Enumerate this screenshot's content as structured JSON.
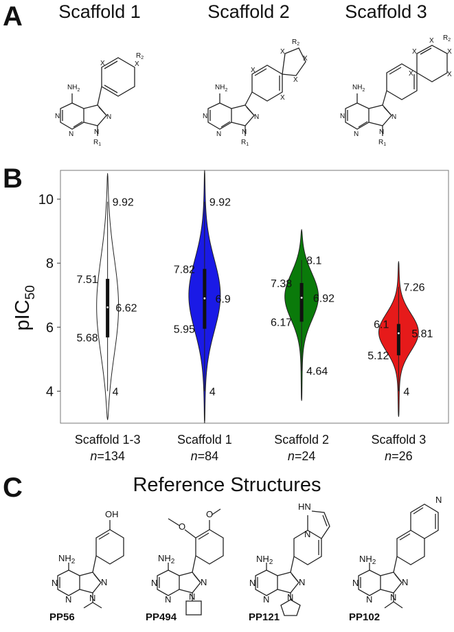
{
  "panels": {
    "a": "A",
    "b": "B",
    "c": "C"
  },
  "scaffold_titles": [
    "Scaffold 1",
    "Scaffold 2",
    "Scaffold 3"
  ],
  "chemistry": {
    "nh2": "NH",
    "sub2": "2",
    "n": "N",
    "x": "X",
    "r1": "R",
    "r2": "R",
    "r1_sub": "1",
    "r2_sub": "2",
    "oh": "OH",
    "o": "O",
    "hn": "HN"
  },
  "reference_title": "Reference Structures",
  "reference_labels": [
    "PP56",
    "PP494",
    "PP121",
    "PP102"
  ],
  "chart_data": {
    "type": "violin",
    "ylabel": "pIC",
    "ylabel_sub": "50",
    "ylim": [
      3.0,
      10.9
    ],
    "yticks": [
      4,
      6,
      8,
      10
    ],
    "grid": false,
    "violins": [
      {
        "category": "Scaffold 1-3",
        "count_prefix": "n",
        "count": "=134",
        "color": "#ffffff",
        "min": 4,
        "q1": 5.68,
        "median": 6.62,
        "q3": 7.51,
        "max": 9.92,
        "labels": {
          "max": "9.92",
          "q3": "7.51",
          "median": "6.62",
          "q1": "5.68",
          "min": "4"
        }
      },
      {
        "category": "Scaffold 1",
        "count_prefix": "n",
        "count": "=84",
        "color": "#1a1ae6",
        "min": 4,
        "q1": 5.95,
        "median": 6.9,
        "q3": 7.82,
        "max": 9.92,
        "labels": {
          "max": "9.92",
          "q3": "7.82",
          "median": "6.9",
          "q1": "5.95",
          "min": "4"
        }
      },
      {
        "category": "Scaffold 2",
        "count_prefix": "n",
        "count": "=24",
        "color": "#0a7a0a",
        "min": 4.64,
        "q1": 6.17,
        "median": 6.92,
        "q3": 7.38,
        "max": 8.1,
        "labels": {
          "max": "8.1",
          "q3": "7.38",
          "median": "6.92",
          "q1": "6.17",
          "min": "4.64"
        }
      },
      {
        "category": "Scaffold 3",
        "count_prefix": "n",
        "count": "=26",
        "color": "#e61a1a",
        "min": 4,
        "q1": 5.12,
        "median": 5.81,
        "q3": 6.1,
        "max": 7.26,
        "labels": {
          "max": "7.26",
          "q3": "6.1",
          "median": "5.81",
          "q1": "5.12",
          "min": "4"
        }
      }
    ]
  }
}
